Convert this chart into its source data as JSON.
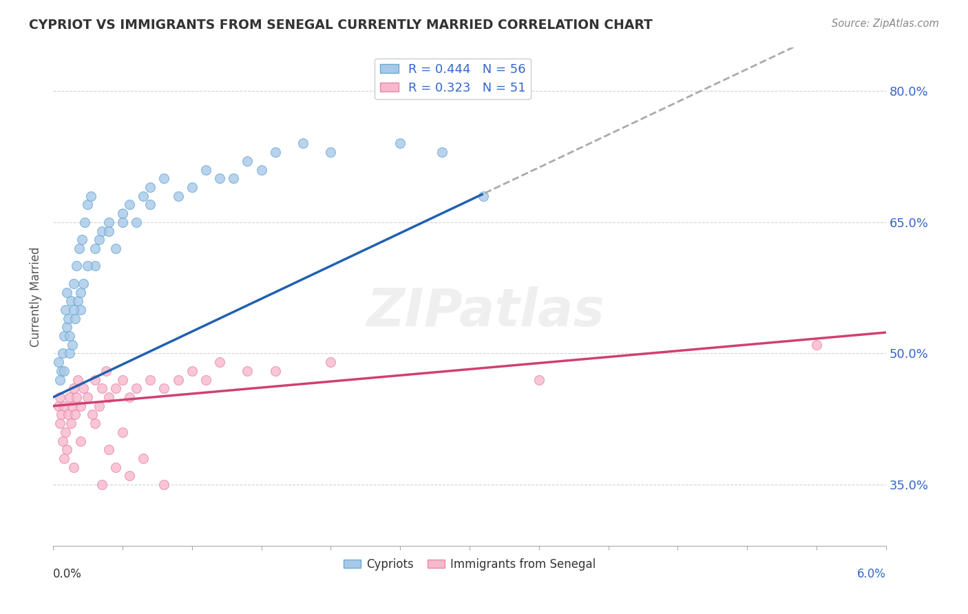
{
  "title": "CYPRIOT VS IMMIGRANTS FROM SENEGAL CURRENTLY MARRIED CORRELATION CHART",
  "source": "Source: ZipAtlas.com",
  "ylabel": "Currently Married",
  "xmin": 0.0,
  "xmax": 6.0,
  "ymin": 28.0,
  "ymax": 85.0,
  "yticks": [
    35.0,
    50.0,
    65.0,
    80.0
  ],
  "ytick_labels": [
    "35.0%",
    "50.0%",
    "65.0%",
    "80.0%"
  ],
  "blue_r": 0.444,
  "blue_n": 56,
  "pink_r": 0.323,
  "pink_n": 51,
  "blue_intercept": 45.0,
  "blue_slope": 7.5,
  "pink_intercept": 44.0,
  "pink_slope": 1.4,
  "blue_line_solid_end": 3.1,
  "blue_color_fill": "#a8c8e8",
  "blue_color_edge": "#6aaad4",
  "pink_color_fill": "#f8b8cc",
  "pink_color_edge": "#e888aa",
  "blue_line_color": "#2060b0",
  "pink_line_color": "#d04070",
  "dash_color": "#aaaaaa",
  "watermark_text": "ZIPatlas",
  "blue_scatter_x": [
    0.04,
    0.05,
    0.06,
    0.07,
    0.08,
    0.09,
    0.1,
    0.1,
    0.11,
    0.12,
    0.13,
    0.14,
    0.15,
    0.16,
    0.17,
    0.18,
    0.19,
    0.2,
    0.21,
    0.22,
    0.23,
    0.25,
    0.27,
    0.3,
    0.33,
    0.35,
    0.4,
    0.45,
    0.5,
    0.55,
    0.6,
    0.65,
    0.7,
    0.8,
    0.9,
    1.0,
    1.1,
    1.2,
    1.4,
    1.6,
    1.8,
    2.0,
    2.5,
    0.08,
    0.12,
    0.15,
    0.2,
    0.25,
    0.3,
    0.4,
    0.5,
    0.7,
    1.3,
    1.5,
    2.8,
    3.1
  ],
  "blue_scatter_y": [
    49,
    47,
    48,
    50,
    52,
    55,
    53,
    57,
    54,
    50,
    56,
    51,
    58,
    54,
    60,
    56,
    62,
    55,
    63,
    58,
    65,
    67,
    68,
    60,
    63,
    64,
    65,
    62,
    66,
    67,
    65,
    68,
    69,
    70,
    68,
    69,
    71,
    70,
    72,
    73,
    74,
    73,
    74,
    48,
    52,
    55,
    57,
    60,
    62,
    64,
    65,
    67,
    70,
    71,
    73,
    68
  ],
  "pink_scatter_x": [
    0.04,
    0.05,
    0.05,
    0.06,
    0.07,
    0.08,
    0.08,
    0.09,
    0.1,
    0.11,
    0.12,
    0.13,
    0.14,
    0.15,
    0.16,
    0.17,
    0.18,
    0.2,
    0.22,
    0.25,
    0.28,
    0.3,
    0.33,
    0.35,
    0.38,
    0.4,
    0.45,
    0.5,
    0.55,
    0.6,
    0.7,
    0.8,
    0.9,
    1.0,
    1.1,
    1.2,
    1.4,
    1.6,
    2.0,
    0.15,
    0.2,
    0.3,
    0.4,
    0.5,
    0.35,
    0.45,
    0.55,
    0.65,
    0.8,
    3.5,
    5.5
  ],
  "pink_scatter_y": [
    44,
    42,
    45,
    43,
    40,
    38,
    44,
    41,
    39,
    43,
    45,
    42,
    44,
    46,
    43,
    45,
    47,
    44,
    46,
    45,
    43,
    47,
    44,
    46,
    48,
    45,
    46,
    47,
    45,
    46,
    47,
    46,
    47,
    48,
    47,
    49,
    48,
    48,
    49,
    37,
    40,
    42,
    39,
    41,
    35,
    37,
    36,
    38,
    35,
    47,
    51
  ]
}
